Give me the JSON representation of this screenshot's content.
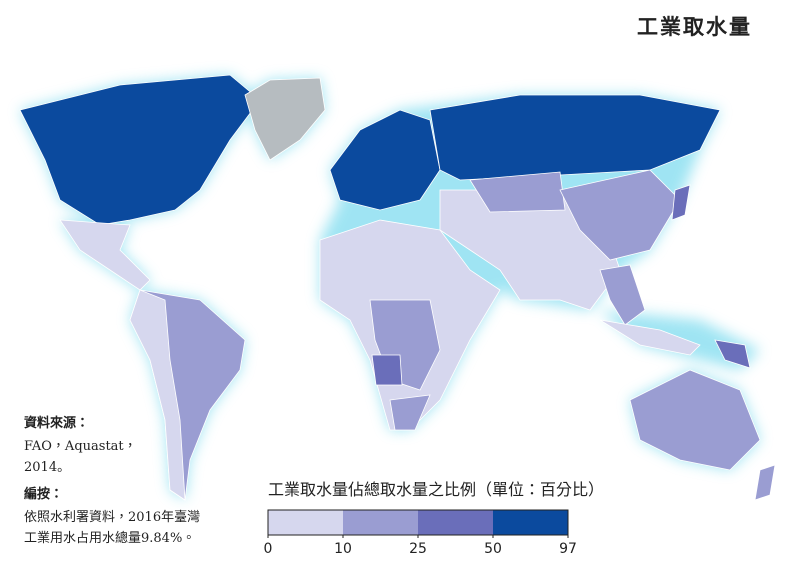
{
  "title": "工業取水量",
  "source": {
    "heading": "資料來源：",
    "lines": [
      "FAO，Aquastat，",
      "2014。"
    ]
  },
  "note": {
    "heading": "編按：",
    "lines": [
      "依照水利署資料，2016年臺灣",
      "工業用水占用水總量9.84%。"
    ]
  },
  "legend": {
    "title": "工業取水量佔總取水量之比例（單位：百分比）",
    "ticks": [
      0,
      10,
      25,
      50,
      97
    ],
    "colors": [
      "#d6d7ee",
      "#9a9dd2",
      "#6a6eba",
      "#0b4a9e"
    ]
  }
}
